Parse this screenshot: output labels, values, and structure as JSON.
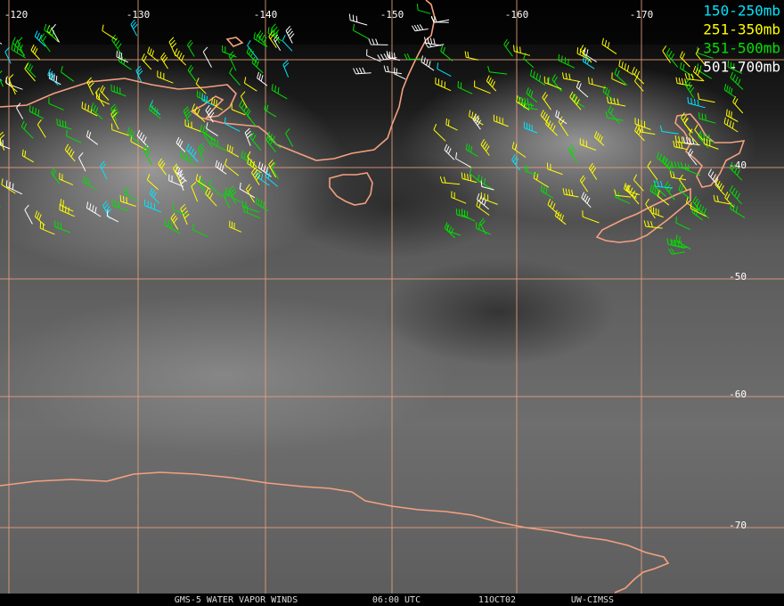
{
  "map": {
    "longitude_labels": [
      "-120",
      "-130",
      "-140",
      "-150",
      "-160",
      "-170"
    ],
    "latitude_labels": [
      "-40",
      "-50",
      "-60",
      "-70"
    ],
    "legend": [
      {
        "label": "150-250mb",
        "color": "#00e5ff"
      },
      {
        "label": "251-350mb",
        "color": "#ffff00"
      },
      {
        "label": "351-500mb",
        "color": "#00e000"
      },
      {
        "label": "501-700mb",
        "color": "#ffffff"
      }
    ],
    "footer": [
      "GMS-5 WATER VAPOR WINDS",
      "06:00 UTC",
      "11OCT02",
      "UW-CIMSS"
    ]
  }
}
